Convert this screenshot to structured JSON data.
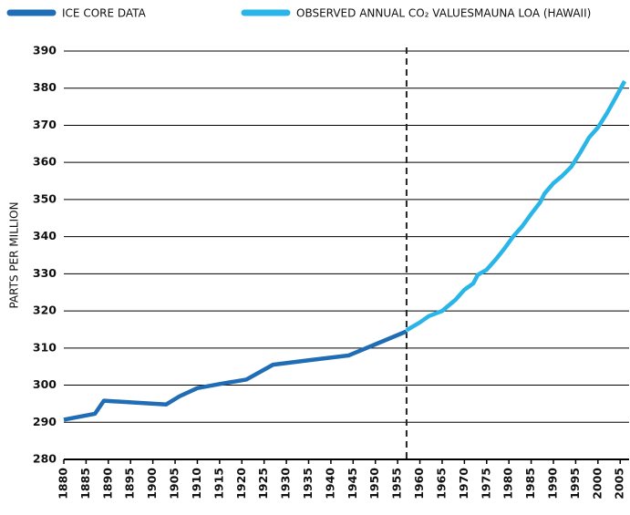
{
  "chart_data": {
    "type": "line",
    "y_label": "PARTS PER MILLION",
    "xlim": [
      1880,
      2007
    ],
    "xticks": [
      1880,
      1885,
      1890,
      1895,
      1900,
      1905,
      1910,
      1915,
      1920,
      1925,
      1930,
      1935,
      1940,
      1945,
      1950,
      1955,
      1960,
      1965,
      1970,
      1975,
      1980,
      1985,
      1990,
      1995,
      2000,
      2005
    ],
    "ylim": [
      280,
      390
    ],
    "yticks": [
      280,
      290,
      300,
      310,
      320,
      330,
      340,
      350,
      360,
      370,
      380,
      390
    ],
    "grid": true,
    "divider_x": 1957,
    "series": [
      {
        "name": "ICE CORE DATA",
        "color": "#1f6db5",
        "x": [
          1880,
          1887,
          1889,
          1903,
          1906,
          1910,
          1915,
          1921,
          1927,
          1935,
          1944,
          1950,
          1957
        ],
        "values": [
          290.7,
          292.3,
          295.8,
          294.8,
          297,
          299.2,
          300.3,
          301.5,
          305.5,
          306.7,
          308,
          311,
          314.5
        ]
      },
      {
        "name": "OBSERVED ANNUAL CO₂ VALUESMAUNA LOA (HAWAII)",
        "color": "#29b5e8",
        "x": [
          1957,
          1960,
          1962,
          1965,
          1968,
          1970,
          1972,
          1973,
          1975,
          1977,
          1979,
          1981,
          1983,
          1985,
          1987,
          1988,
          1990,
          1992,
          1994,
          1996,
          1998,
          2000,
          2002,
          2004,
          2006
        ],
        "values": [
          314.8,
          316.9,
          318.6,
          320.0,
          323,
          325.7,
          327.4,
          329.7,
          331.1,
          333.8,
          336.8,
          340.1,
          342.8,
          346.1,
          349.2,
          351.6,
          354.4,
          356.4,
          358.8,
          362.6,
          366.7,
          369.4,
          373.2,
          377.5,
          381.9
        ]
      }
    ]
  }
}
